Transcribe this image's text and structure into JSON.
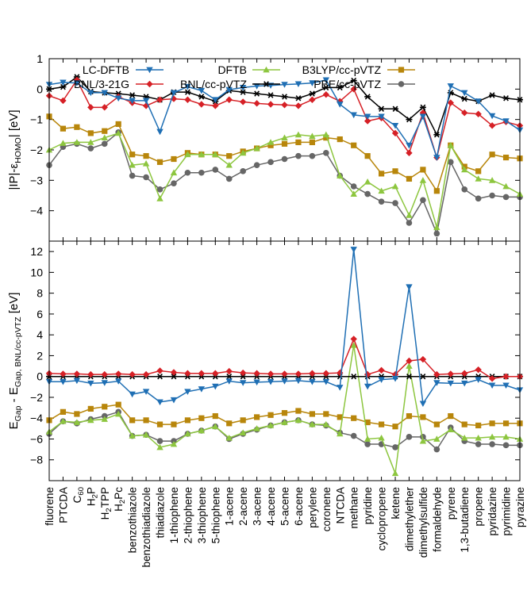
{
  "chart_data": {
    "type": "line",
    "categories": [
      "fluorene",
      "PTCDA",
      "C60",
      "H2P",
      "H2TPP",
      "H2Pc",
      "benzothiazole",
      "benzothiadiazole",
      "thiadiazole",
      "1-thiophene",
      "2-thiophene",
      "3-thiophene",
      "5-thiophene",
      "1-acene",
      "2-acene",
      "3-acene",
      "4-acene",
      "5-acene",
      "6-acene",
      "perylene",
      "coronene",
      "NTCDA",
      "methane",
      "pyridine",
      "cyclopropene",
      "ketene",
      "dimethylether",
      "dimethylsulfide",
      "formaldehyde",
      "pyrene",
      "1,3-butadiene",
      "propene",
      "pyridazine",
      "pyrimidine",
      "pyrazine"
    ],
    "category_labels": [
      [
        "fluorene"
      ],
      [
        "PTCDA"
      ],
      [
        "C",
        "60"
      ],
      [
        "H",
        "2",
        "P"
      ],
      [
        "H",
        "2",
        "TPP"
      ],
      [
        "H",
        "2",
        "Pc"
      ],
      [
        "benzothiazole"
      ],
      [
        "benzothiadiazole"
      ],
      [
        "thiadiazole"
      ],
      [
        "1-thiophene"
      ],
      [
        "2-thiophene"
      ],
      [
        "3-thiophene"
      ],
      [
        "5-thiophene"
      ],
      [
        "1-acene"
      ],
      [
        "2-acene"
      ],
      [
        "3-acene"
      ],
      [
        "4-acene"
      ],
      [
        "5-acene"
      ],
      [
        "6-acene"
      ],
      [
        "perylene"
      ],
      [
        "coronene"
      ],
      [
        "NTCDA"
      ],
      [
        "methane"
      ],
      [
        "pyridine"
      ],
      [
        "cyclopropene"
      ],
      [
        "ketene"
      ],
      [
        "dimethylether"
      ],
      [
        "dimethylsulfide"
      ],
      [
        "formaldehyde"
      ],
      [
        "pyrene"
      ],
      [
        "1,3-butadiene"
      ],
      [
        "propene"
      ],
      [
        "pyridazine"
      ],
      [
        "pyrimidine"
      ],
      [
        "pyrazine"
      ]
    ],
    "panels": [
      {
        "ylabel": "|IP|-ε_HOMO| [eV]",
        "ylabel_parts": [
          "|IP|-ε",
          "HOMO",
          "| [eV]"
        ],
        "ylim": [
          -5,
          1
        ],
        "yticks": [
          -4,
          -3,
          -2,
          -1,
          0,
          1
        ],
        "grid": false,
        "series": [
          {
            "name": "LC-DFTB",
            "values": [
              0.15,
              0.22,
              0.2,
              -0.12,
              -0.12,
              -0.3,
              -0.38,
              -0.38,
              -1.4,
              -0.12,
              0.08,
              -0.05,
              -0.35,
              -0.02,
              0.05,
              0.1,
              0.12,
              0.15,
              0.17,
              0.2,
              0.3,
              -0.5,
              -0.85,
              -0.9,
              -0.9,
              -1.2,
              -1.85,
              -0.9,
              -2.25,
              0.1,
              -0.12,
              -0.4,
              -0.88,
              -1.05,
              -1.35
            ]
          },
          {
            "name": "BNL/3-21G",
            "values": [
              -0.22,
              -0.38,
              0.3,
              -0.6,
              -0.6,
              -0.25,
              -0.45,
              -0.55,
              -0.35,
              -0.32,
              -0.35,
              -0.5,
              -0.55,
              -0.35,
              -0.42,
              -0.47,
              -0.5,
              -0.52,
              -0.55,
              -0.35,
              -0.18,
              -0.4,
              0.0,
              -1.05,
              -0.95,
              -1.45,
              -2.1,
              -0.78,
              -2.25,
              -0.45,
              -0.78,
              -0.82,
              -1.2,
              -1.08,
              -1.2
            ]
          },
          {
            "name": "DFTB",
            "values": [
              -2.0,
              -1.78,
              -1.75,
              -1.75,
              -1.6,
              -1.45,
              -2.5,
              -2.45,
              -3.6,
              -2.75,
              -2.15,
              -2.15,
              -2.15,
              -2.5,
              -2.1,
              -1.95,
              -1.75,
              -1.6,
              -1.5,
              -1.55,
              -1.5,
              -2.85,
              -3.45,
              -3.05,
              -3.35,
              -3.2,
              -4.15,
              -3.0,
              -4.55,
              -1.85,
              -2.65,
              -2.95,
              -3.0,
              -3.2,
              -3.45
            ]
          },
          {
            "name": "BNL/cc-pVTZ",
            "values": [
              0.0,
              0.07,
              0.4,
              -0.08,
              -0.12,
              -0.15,
              -0.2,
              -0.25,
              -0.35,
              -0.1,
              -0.1,
              -0.25,
              -0.4,
              -0.05,
              -0.1,
              -0.15,
              -0.2,
              -0.25,
              -0.3,
              -0.15,
              0.05,
              0.05,
              0.28,
              -0.25,
              -0.65,
              -0.65,
              -1.0,
              -0.6,
              -1.5,
              -0.12,
              -0.32,
              -0.4,
              -0.2,
              -0.3,
              -0.35
            ]
          },
          {
            "name": "B3LYP/cc-pVTZ",
            "values": [
              -0.9,
              -1.3,
              -1.25,
              -1.45,
              -1.38,
              -1.15,
              -2.15,
              -2.2,
              -2.4,
              -2.3,
              -2.1,
              -2.15,
              -2.15,
              -2.2,
              -2.05,
              -1.95,
              -1.85,
              -1.8,
              -1.75,
              -1.75,
              -1.6,
              -1.65,
              -1.85,
              -2.2,
              -2.78,
              -2.7,
              -2.95,
              -2.65,
              -3.35,
              -1.85,
              -2.55,
              -2.7,
              -2.15,
              -2.25,
              -2.28
            ]
          },
          {
            "name": "PBE/cc-pVTZ",
            "values": [
              -2.5,
              -1.9,
              -1.8,
              -1.95,
              -1.8,
              -1.42,
              -2.85,
              -2.9,
              -3.3,
              -3.1,
              -2.75,
              -2.75,
              -2.65,
              -2.95,
              -2.7,
              -2.5,
              -2.4,
              -2.3,
              -2.2,
              -2.2,
              -2.1,
              -2.85,
              -3.2,
              -3.45,
              -3.7,
              -3.75,
              -4.4,
              -3.65,
              -4.75,
              -2.4,
              -3.3,
              -3.6,
              -3.5,
              -3.55,
              -3.55
            ]
          }
        ]
      },
      {
        "ylabel": "E_Gap - E_Gap, BNL/cc-pVTZ [eV]",
        "ylabel_parts": [
          "E",
          "Gap",
          " - E",
          "Gap, BNL/cc-pVTZ",
          " [eV]"
        ],
        "ylim": [
          -10,
          13
        ],
        "yticks": [
          -8,
          -6,
          -4,
          -2,
          0,
          2,
          4,
          6,
          8,
          10,
          12
        ],
        "grid": false,
        "series": [
          {
            "name": "LC-DFTB",
            "values": [
              -0.5,
              -0.5,
              -0.4,
              -0.65,
              -0.6,
              -0.45,
              -1.7,
              -1.45,
              -2.45,
              -2.25,
              -1.45,
              -1.2,
              -0.95,
              -0.45,
              -0.6,
              -0.55,
              -0.5,
              -0.45,
              -0.4,
              -0.5,
              -0.5,
              -1.05,
              12.2,
              -0.95,
              -0.3,
              -0.2,
              8.6,
              -2.6,
              -0.6,
              -0.65,
              -0.65,
              -0.3,
              -0.85,
              -0.85,
              -1.3
            ]
          },
          {
            "name": "BNL/3-21G",
            "values": [
              0.3,
              0.25,
              0.25,
              0.2,
              0.2,
              0.25,
              0.2,
              0.2,
              0.55,
              0.4,
              0.3,
              0.3,
              0.3,
              0.5,
              0.35,
              0.3,
              0.25,
              0.25,
              0.25,
              0.3,
              0.3,
              0.35,
              3.6,
              0.2,
              0.6,
              0.2,
              1.5,
              1.65,
              0.2,
              0.25,
              0.3,
              0.65,
              -0.2,
              0.0,
              0.0
            ]
          },
          {
            "name": "DFTB",
            "values": [
              -5.3,
              -4.3,
              -4.4,
              -4.2,
              -4.1,
              -3.6,
              -5.7,
              -5.6,
              -6.8,
              -6.5,
              -5.5,
              -5.2,
              -4.8,
              -5.9,
              -5.4,
              -5.0,
              -4.7,
              -4.4,
              -4.2,
              -4.6,
              -4.6,
              -5.5,
              3.0,
              -6.0,
              -5.9,
              -9.3,
              1.0,
              -6.2,
              -6.0,
              -5.1,
              -5.9,
              -5.9,
              -5.8,
              -5.8,
              -6.0
            ]
          },
          {
            "name": "BNL/cc-pVTZ",
            "values": [
              0,
              0,
              0,
              0,
              0,
              0,
              0,
              0,
              0,
              0,
              0,
              0,
              0,
              0,
              0,
              0,
              0,
              0,
              0,
              0,
              0,
              0,
              0,
              0,
              0,
              0,
              0,
              0,
              0,
              0,
              0,
              0,
              0,
              0,
              0
            ]
          },
          {
            "name": "B3LYP/cc-pVTZ",
            "values": [
              -4.2,
              -3.4,
              -3.6,
              -3.1,
              -2.9,
              -2.7,
              -4.2,
              -4.2,
              -4.6,
              -4.6,
              -4.2,
              -4.0,
              -3.8,
              -4.5,
              -4.2,
              -3.9,
              -3.7,
              -3.5,
              -3.3,
              -3.6,
              -3.6,
              -3.9,
              -4.0,
              -4.4,
              -4.6,
              -4.8,
              -3.8,
              -3.9,
              -4.6,
              -3.8,
              -4.6,
              -4.7,
              -4.5,
              -4.5,
              -4.5
            ]
          },
          {
            "name": "PBE/cc-pVTZ",
            "values": [
              -5.5,
              -4.3,
              -4.5,
              -4.1,
              -3.8,
              -3.4,
              -5.7,
              -5.6,
              -6.2,
              -6.2,
              -5.5,
              -5.2,
              -4.8,
              -6.0,
              -5.5,
              -5.1,
              -4.7,
              -4.4,
              -4.2,
              -4.6,
              -4.7,
              -5.4,
              -5.7,
              -6.5,
              -6.5,
              -6.8,
              -5.8,
              -5.8,
              -7.0,
              -4.9,
              -6.2,
              -6.5,
              -6.5,
              -6.6,
              -6.6
            ]
          }
        ]
      }
    ],
    "legend": {
      "placement": "top",
      "columns": 3
    }
  },
  "series_style": {
    "LC-DFTB": {
      "color": "#1f6fb4",
      "marker": "triangle-down"
    },
    "BNL/3-21G": {
      "color": "#d62026",
      "marker": "diamond"
    },
    "DFTB": {
      "color": "#8dc63f",
      "marker": "triangle-up"
    },
    "BNL/cc-pVTZ": {
      "color": "#000000",
      "marker": "asterisk"
    },
    "B3LYP/cc-pVTZ": {
      "color": "#b8860b",
      "marker": "square"
    },
    "PBE/cc-pVTZ": {
      "color": "#666666",
      "marker": "circle"
    }
  }
}
